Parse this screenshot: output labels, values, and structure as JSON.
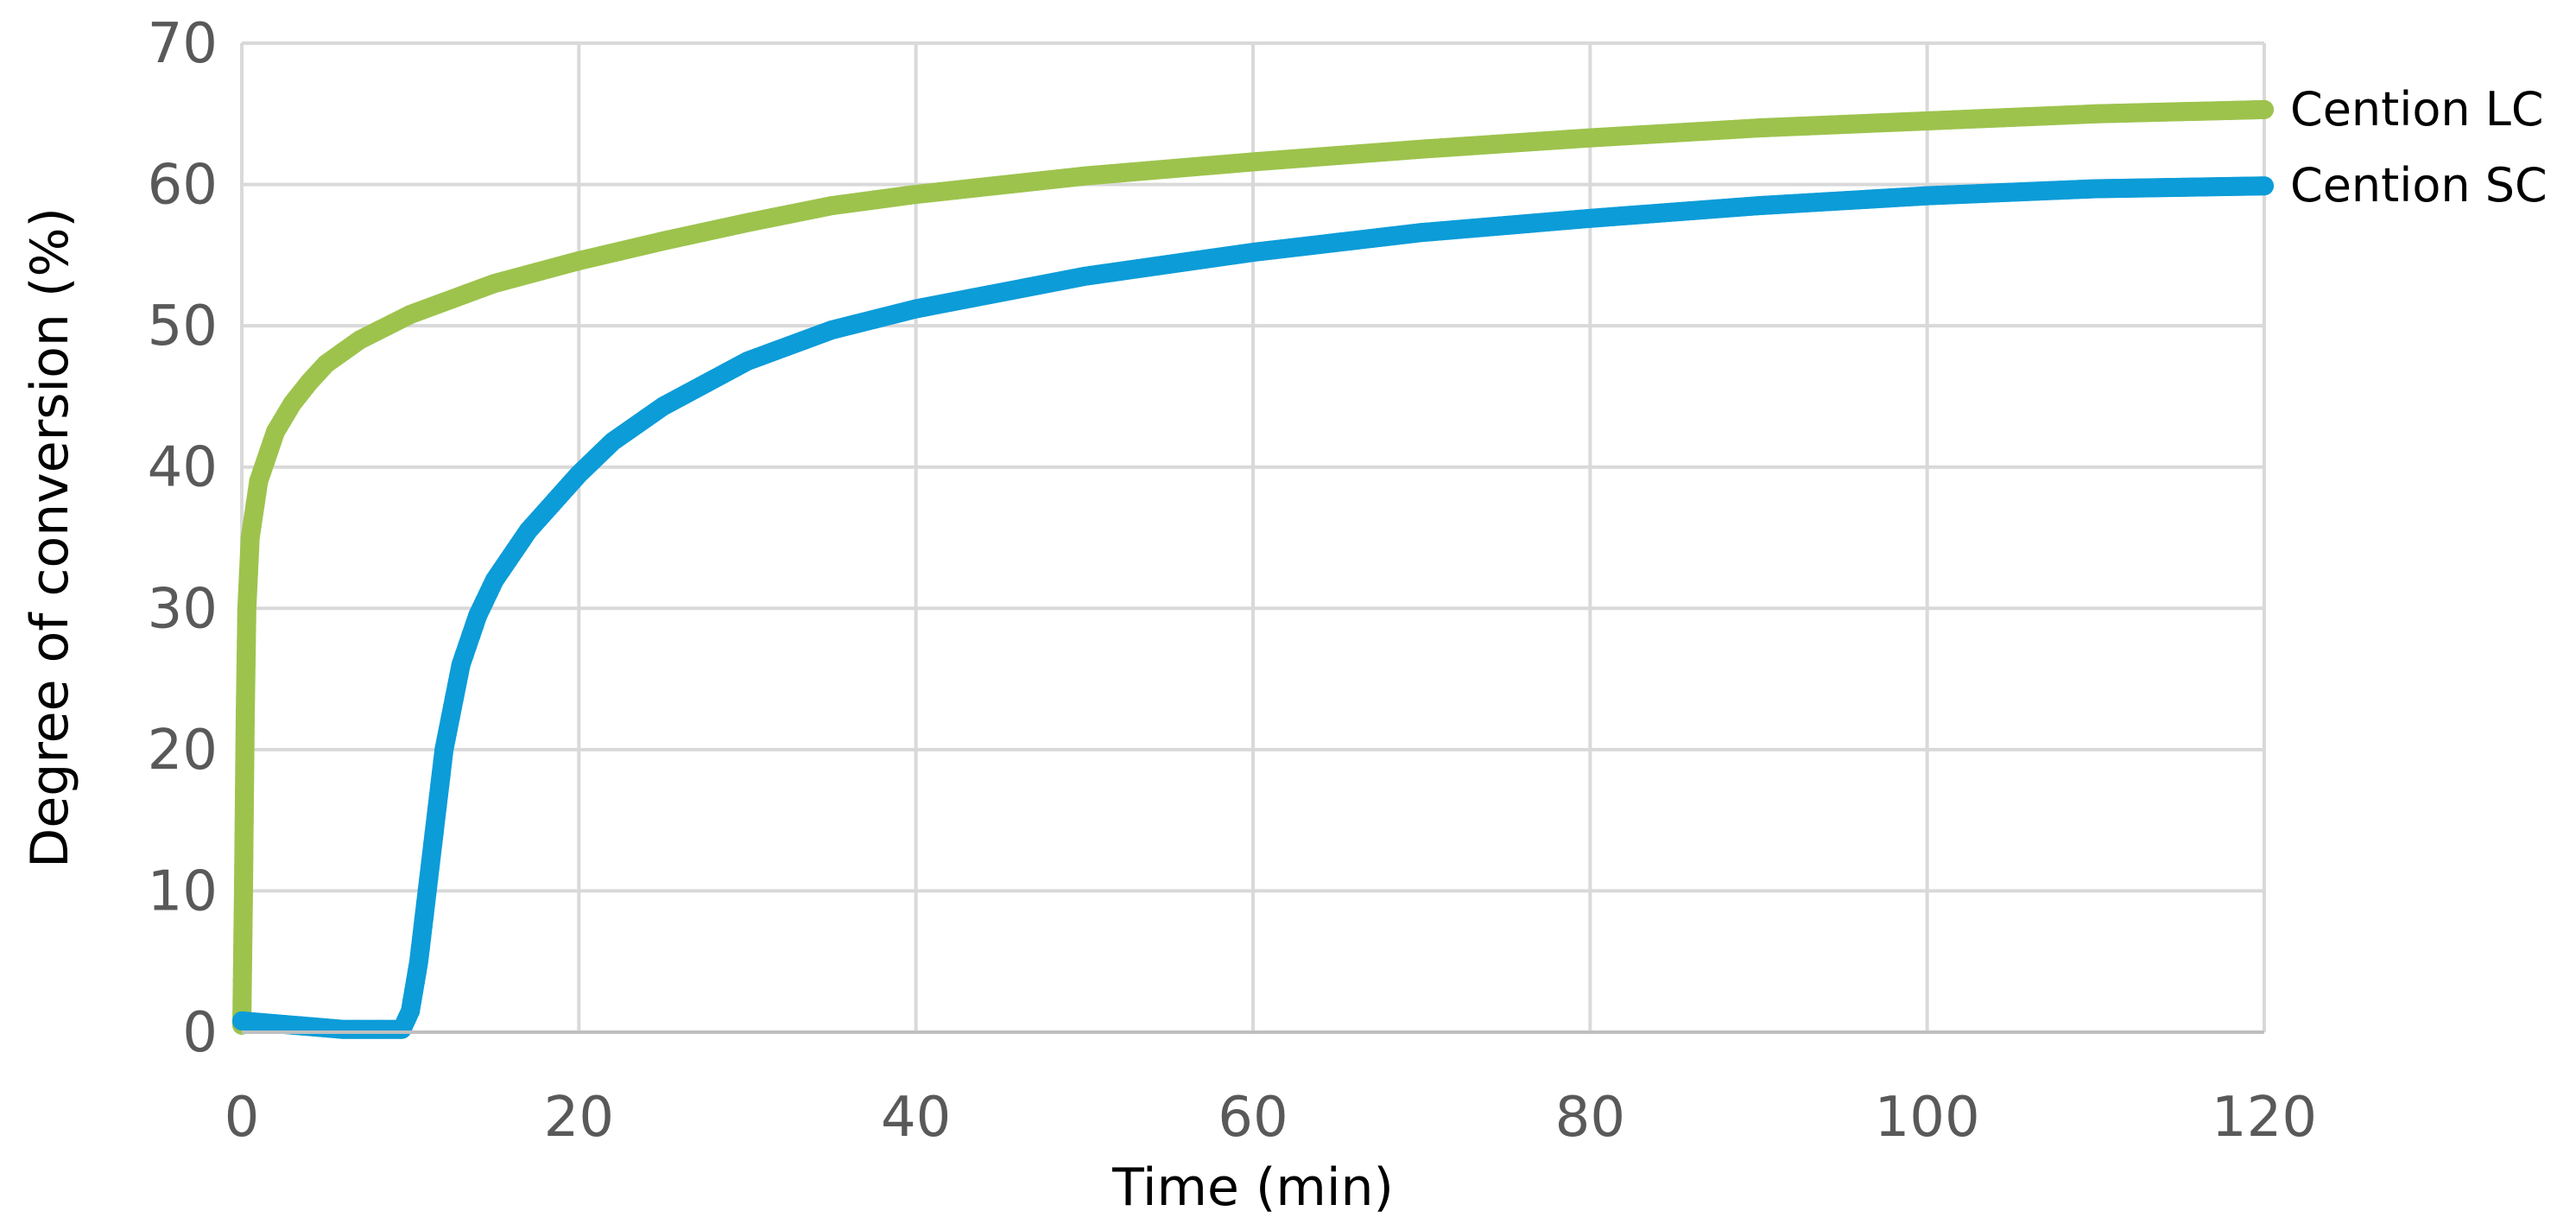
{
  "chart_data": {
    "type": "scatter",
    "title": "",
    "xlabel": "Time (min)",
    "ylabel": "Degree of conversion (%)",
    "xlim": [
      0,
      120
    ],
    "ylim": [
      0,
      70
    ],
    "x_ticks": [
      "0",
      "20",
      "40",
      "60",
      "80",
      "100",
      "120"
    ],
    "y_ticks": [
      "0",
      "10",
      "20",
      "30",
      "40",
      "50",
      "60",
      "70"
    ],
    "grid": true,
    "legend": "none (series labels at right end of each curve)",
    "series": [
      {
        "name": "Cention LC",
        "color": "#9DC34D",
        "label": "Cention LC",
        "points": [
          [
            0,
            0.5
          ],
          [
            0.1,
            10
          ],
          [
            0.2,
            22
          ],
          [
            0.3,
            30
          ],
          [
            0.5,
            35
          ],
          [
            1,
            39
          ],
          [
            2,
            42.5
          ],
          [
            3,
            44.5
          ],
          [
            4,
            46
          ],
          [
            5,
            47.3
          ],
          [
            7,
            49
          ],
          [
            10,
            50.8
          ],
          [
            15,
            53
          ],
          [
            20,
            54.6
          ],
          [
            25,
            56
          ],
          [
            30,
            57.3
          ],
          [
            35,
            58.5
          ],
          [
            40,
            59.3
          ],
          [
            50,
            60.6
          ],
          [
            60,
            61.6
          ],
          [
            70,
            62.5
          ],
          [
            80,
            63.3
          ],
          [
            90,
            64
          ],
          [
            100,
            64.5
          ],
          [
            110,
            65
          ],
          [
            120,
            65.3
          ]
        ]
      },
      {
        "name": "Cention SC",
        "color": "#0C9CD8",
        "label": "Cention SC",
        "points": [
          [
            0,
            0.8
          ],
          [
            2,
            0.6
          ],
          [
            4,
            0.4
          ],
          [
            6,
            0.2
          ],
          [
            8,
            0.2
          ],
          [
            9.5,
            0.2
          ],
          [
            10,
            1.5
          ],
          [
            10.5,
            5
          ],
          [
            11,
            10
          ],
          [
            11.5,
            15
          ],
          [
            12,
            20
          ],
          [
            13,
            26
          ],
          [
            14,
            29.5
          ],
          [
            15,
            32
          ],
          [
            17,
            35.5
          ],
          [
            20,
            39.5
          ],
          [
            22,
            41.8
          ],
          [
            25,
            44.3
          ],
          [
            30,
            47.5
          ],
          [
            35,
            49.7
          ],
          [
            40,
            51.2
          ],
          [
            50,
            53.5
          ],
          [
            60,
            55.2
          ],
          [
            70,
            56.6
          ],
          [
            80,
            57.6
          ],
          [
            90,
            58.5
          ],
          [
            100,
            59.2
          ],
          [
            110,
            59.7
          ],
          [
            120,
            59.9
          ]
        ]
      }
    ]
  }
}
